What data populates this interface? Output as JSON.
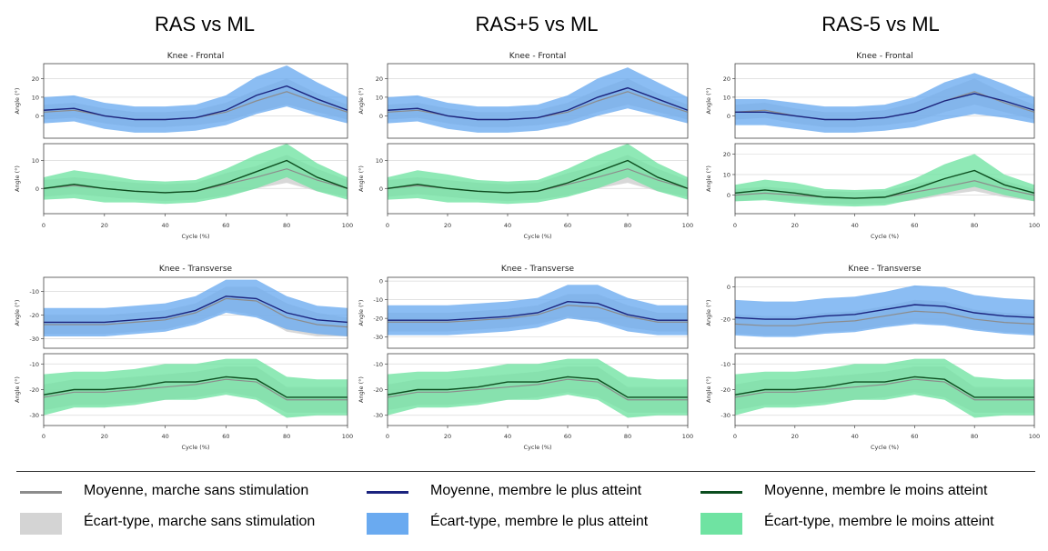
{
  "column_titles": [
    "RAS vs ML",
    "RAS+5 vs ML",
    "RAS-5 vs ML"
  ],
  "panel_titles": {
    "frontal": "Knee - Frontal",
    "transverse": "Knee - Transverse"
  },
  "axis_labels": {
    "y": "Angle (°)",
    "x": "Cycle (%)"
  },
  "colors": {
    "gray_line": "#8c8c8c",
    "gray_band": "#d4d4d4",
    "blue_line": "#1a237e",
    "blue_band": "#6aaaf0",
    "green_line": "#0b4d1e",
    "green_band": "#6fe3a2"
  },
  "legend": [
    {
      "label": "Moyenne, marche sans stimulation",
      "kind": "line",
      "color": "#8c8c8c"
    },
    {
      "label": "Moyenne, membre le plus atteint",
      "kind": "line",
      "color": "#1a237e"
    },
    {
      "label": "Moyenne, membre le moins atteint",
      "kind": "line",
      "color": "#0b4d1e"
    },
    {
      "label": "Écart-type, marche sans stimulation",
      "kind": "band",
      "color": "#d4d4d4"
    },
    {
      "label": "Écart-type, membre le plus atteint",
      "kind": "band",
      "color": "#6aaaf0"
    },
    {
      "label": "Écart-type, membre le moins atteint",
      "kind": "band",
      "color": "#6fe3a2"
    }
  ],
  "chart_data": [
    {
      "type": "line",
      "column": "RAS vs ML",
      "title": "Knee - Frontal",
      "subplots": [
        {
          "member": "plus",
          "ylabel": "Angle (°)",
          "xlabel": "",
          "ylim": [
            -12,
            28
          ],
          "yticks": [
            0,
            10,
            20
          ],
          "xlim": [
            0,
            100
          ],
          "x": [
            0,
            10,
            20,
            30,
            40,
            50,
            60,
            70,
            80,
            90,
            100
          ],
          "mean": [
            3,
            4,
            0,
            -2,
            -2,
            -1,
            3,
            11,
            16,
            9,
            3
          ],
          "sd": [
            7,
            7,
            7,
            7,
            7,
            7,
            8,
            10,
            11,
            9,
            7
          ],
          "ref_mean": [
            2,
            3,
            0,
            -2,
            -2,
            -1,
            2,
            8,
            13,
            7,
            2
          ],
          "ref_sd": [
            4,
            4,
            4,
            4,
            4,
            4,
            5,
            6,
            7,
            5,
            4
          ]
        },
        {
          "member": "moins",
          "ylabel": "Angle (°)",
          "xlabel": "Cycle (%)",
          "ylim": [
            -9,
            16
          ],
          "yticks": [
            0,
            10
          ],
          "xlim": [
            0,
            100
          ],
          "xticks": [
            0,
            20,
            40,
            60,
            80,
            100
          ],
          "x": [
            0,
            10,
            20,
            30,
            40,
            50,
            60,
            70,
            80,
            90,
            100
          ],
          "mean": [
            0,
            1.5,
            0,
            -1,
            -1.5,
            -1,
            2,
            6,
            10,
            4,
            0
          ],
          "sd": [
            4,
            5,
            5,
            4,
            4,
            4,
            5,
            6,
            6,
            5,
            4
          ],
          "ref_mean": [
            0,
            1,
            0,
            -1,
            -1.5,
            -1,
            1.5,
            4,
            7,
            3,
            0
          ],
          "ref_sd": [
            3,
            3,
            3,
            3,
            3,
            3,
            4,
            4,
            5,
            4,
            3
          ]
        }
      ]
    },
    {
      "type": "line",
      "column": "RAS+5 vs ML",
      "title": "Knee - Frontal",
      "subplots": [
        {
          "member": "plus",
          "ylabel": "Angle (°)",
          "xlabel": "",
          "ylim": [
            -12,
            28
          ],
          "yticks": [
            0,
            10,
            20
          ],
          "xlim": [
            0,
            100
          ],
          "x": [
            0,
            10,
            20,
            30,
            40,
            50,
            60,
            70,
            80,
            90,
            100
          ],
          "mean": [
            3,
            4,
            0,
            -2,
            -2,
            -1,
            3,
            10,
            15,
            9,
            3
          ],
          "sd": [
            7,
            7,
            7,
            7,
            7,
            7,
            8,
            10,
            11,
            9,
            7
          ],
          "ref_mean": [
            2,
            3,
            0,
            -2,
            -2,
            -1,
            2,
            8,
            13,
            7,
            2
          ],
          "ref_sd": [
            4,
            4,
            4,
            4,
            4,
            4,
            5,
            6,
            7,
            5,
            4
          ]
        },
        {
          "member": "moins",
          "ylabel": "Angle (°)",
          "xlabel": "Cycle (%)",
          "ylim": [
            -9,
            16
          ],
          "yticks": [
            0,
            10
          ],
          "xlim": [
            0,
            100
          ],
          "xticks": [
            0,
            20,
            40,
            60,
            80,
            100
          ],
          "x": [
            0,
            10,
            20,
            30,
            40,
            50,
            60,
            70,
            80,
            90,
            100
          ],
          "mean": [
            0,
            1.5,
            0,
            -1,
            -1.5,
            -1,
            2,
            6,
            10,
            4,
            0
          ],
          "sd": [
            4,
            5,
            5,
            4,
            4,
            4,
            5,
            6,
            6,
            5,
            4
          ],
          "ref_mean": [
            0,
            1,
            0,
            -1,
            -1.5,
            -1,
            1.5,
            4,
            7,
            3,
            0
          ],
          "ref_sd": [
            3,
            3,
            3,
            3,
            3,
            3,
            4,
            4,
            5,
            4,
            3
          ]
        }
      ]
    },
    {
      "type": "line",
      "column": "RAS-5 vs ML",
      "title": "Knee - Frontal",
      "subplots": [
        {
          "member": "plus",
          "ylabel": "Angle (°)",
          "xlabel": "",
          "ylim": [
            -12,
            28
          ],
          "yticks": [
            0,
            10,
            20
          ],
          "xlim": [
            0,
            100
          ],
          "x": [
            0,
            10,
            20,
            30,
            40,
            50,
            60,
            70,
            80,
            90,
            100
          ],
          "mean": [
            2,
            2,
            0,
            -2,
            -2,
            -1,
            2,
            8,
            12,
            8,
            3
          ],
          "sd": [
            7,
            7,
            7,
            7,
            7,
            7,
            8,
            10,
            11,
            9,
            7
          ],
          "ref_mean": [
            2,
            3,
            0,
            -2,
            -2,
            -1,
            2,
            8,
            13,
            7,
            2
          ],
          "ref_sd": [
            4,
            4,
            4,
            4,
            4,
            4,
            5,
            6,
            7,
            5,
            4
          ]
        },
        {
          "member": "moins",
          "ylabel": "Angle (°)",
          "xlabel": "Cycle (%)",
          "ylim": [
            -9,
            25
          ],
          "yticks": [
            0,
            10,
            20
          ],
          "xlim": [
            0,
            100
          ],
          "xticks": [
            0,
            20,
            40,
            60,
            80,
            100
          ],
          "x": [
            0,
            10,
            20,
            30,
            40,
            50,
            60,
            70,
            80,
            90,
            100
          ],
          "mean": [
            1,
            2.5,
            1,
            -1,
            -1.5,
            -1,
            3,
            8,
            12,
            5,
            1
          ],
          "sd": [
            4,
            5,
            5,
            4,
            4,
            4,
            5,
            7,
            8,
            5,
            4
          ],
          "ref_mean": [
            0,
            1,
            0,
            -1,
            -1.5,
            -1,
            1.5,
            4,
            7,
            3,
            0
          ],
          "ref_sd": [
            3,
            3,
            3,
            3,
            3,
            3,
            4,
            4,
            5,
            4,
            3
          ]
        }
      ]
    },
    {
      "type": "line",
      "column": "RAS vs ML",
      "title": "Knee - Transverse",
      "subplots": [
        {
          "member": "plus",
          "ylabel": "Angle (°)",
          "xlabel": "",
          "ylim": [
            -34,
            -4
          ],
          "yticks": [
            -30,
            -20,
            -10
          ],
          "xlim": [
            0,
            100
          ],
          "x": [
            0,
            10,
            20,
            30,
            40,
            50,
            60,
            70,
            80,
            90,
            100
          ],
          "mean": [
            -23,
            -23,
            -23,
            -22,
            -21,
            -18,
            -12,
            -13,
            -19,
            -22,
            -23
          ],
          "sd": [
            6,
            6,
            6,
            6,
            6,
            6,
            7,
            8,
            7,
            6,
            6
          ],
          "ref_mean": [
            -24,
            -24,
            -24,
            -23,
            -22,
            -19,
            -13,
            -14,
            -21,
            -24,
            -25
          ],
          "ref_sd": [
            4,
            4,
            4,
            4,
            4,
            4,
            5,
            6,
            6,
            5,
            4
          ]
        },
        {
          "member": "moins",
          "ylabel": "Angle (°)",
          "xlabel": "Cycle (%)",
          "ylim": [
            -34,
            -6
          ],
          "yticks": [
            -30,
            -20,
            -10
          ],
          "xlim": [
            0,
            100
          ],
          "xticks": [
            0,
            20,
            40,
            60,
            80,
            100
          ],
          "x": [
            0,
            10,
            20,
            30,
            40,
            50,
            60,
            70,
            80,
            90,
            100
          ],
          "mean": [
            -22,
            -20,
            -20,
            -19,
            -17,
            -17,
            -15,
            -16,
            -23,
            -23,
            -23
          ],
          "sd": [
            8,
            7,
            7,
            7,
            7,
            7,
            7,
            8,
            8,
            7,
            7
          ],
          "ref_mean": [
            -23,
            -21,
            -21,
            -20,
            -19,
            -18,
            -16,
            -17,
            -24,
            -24,
            -24
          ],
          "ref_sd": [
            5,
            5,
            5,
            5,
            5,
            5,
            5,
            6,
            5,
            5,
            5
          ]
        }
      ]
    },
    {
      "type": "line",
      "column": "RAS+5 vs ML",
      "title": "Knee - Transverse",
      "subplots": [
        {
          "member": "plus",
          "ylabel": "Angle (°)",
          "xlabel": "",
          "ylim": [
            -36,
            2
          ],
          "yticks": [
            -30,
            -20,
            -10,
            0
          ],
          "xlim": [
            0,
            100
          ],
          "x": [
            0,
            10,
            20,
            30,
            40,
            50,
            60,
            70,
            80,
            90,
            100
          ],
          "mean": [
            -21,
            -21,
            -21,
            -20,
            -19,
            -17,
            -11,
            -12,
            -18,
            -21,
            -21
          ],
          "sd": [
            8,
            8,
            8,
            8,
            8,
            8,
            9,
            10,
            9,
            8,
            8
          ],
          "ref_mean": [
            -22,
            -22,
            -22,
            -21,
            -20,
            -18,
            -13,
            -14,
            -19,
            -22,
            -22
          ],
          "ref_sd": [
            5,
            5,
            5,
            5,
            5,
            5,
            6,
            7,
            6,
            5,
            5
          ]
        },
        {
          "member": "moins",
          "ylabel": "Angle (°)",
          "xlabel": "Cycle (%)",
          "ylim": [
            -34,
            -6
          ],
          "yticks": [
            -30,
            -20,
            -10
          ],
          "xlim": [
            0,
            100
          ],
          "xticks": [
            0,
            20,
            40,
            60,
            80,
            100
          ],
          "x": [
            0,
            10,
            20,
            30,
            40,
            50,
            60,
            70,
            80,
            90,
            100
          ],
          "mean": [
            -22,
            -20,
            -20,
            -19,
            -17,
            -17,
            -15,
            -16,
            -23,
            -23,
            -23
          ],
          "sd": [
            8,
            7,
            7,
            7,
            7,
            7,
            7,
            8,
            8,
            7,
            7
          ],
          "ref_mean": [
            -23,
            -21,
            -21,
            -20,
            -19,
            -18,
            -16,
            -17,
            -24,
            -24,
            -24
          ],
          "ref_sd": [
            5,
            5,
            5,
            5,
            5,
            5,
            5,
            6,
            5,
            5,
            5
          ]
        }
      ]
    },
    {
      "type": "line",
      "column": "RAS-5 vs ML",
      "title": "Knee - Transverse",
      "subplots": [
        {
          "member": "plus",
          "ylabel": "Angle (°)",
          "xlabel": "",
          "ylim": [
            -38,
            6
          ],
          "yticks": [
            -20,
            0
          ],
          "xlim": [
            0,
            100
          ],
          "x": [
            0,
            10,
            20,
            30,
            40,
            50,
            60,
            70,
            80,
            90,
            100
          ],
          "mean": [
            -19,
            -20,
            -20,
            -18,
            -17,
            -14,
            -11,
            -12,
            -16,
            -18,
            -19
          ],
          "sd": [
            11,
            11,
            11,
            11,
            11,
            11,
            12,
            12,
            11,
            11,
            11
          ],
          "ref_mean": [
            -23,
            -24,
            -24,
            -22,
            -21,
            -18,
            -15,
            -16,
            -20,
            -22,
            -23
          ],
          "ref_sd": [
            6,
            6,
            6,
            6,
            6,
            6,
            7,
            7,
            6,
            6,
            6
          ]
        },
        {
          "member": "moins",
          "ylabel": "Angle (°)",
          "xlabel": "Cycle (%)",
          "ylim": [
            -34,
            -6
          ],
          "yticks": [
            -30,
            -20,
            -10
          ],
          "xlim": [
            0,
            100
          ],
          "xticks": [
            0,
            20,
            40,
            60,
            80,
            100
          ],
          "x": [
            0,
            10,
            20,
            30,
            40,
            50,
            60,
            70,
            80,
            90,
            100
          ],
          "mean": [
            -22,
            -20,
            -20,
            -19,
            -17,
            -17,
            -15,
            -16,
            -23,
            -23,
            -23
          ],
          "sd": [
            8,
            7,
            7,
            7,
            7,
            7,
            7,
            8,
            8,
            7,
            7
          ],
          "ref_mean": [
            -23,
            -21,
            -21,
            -20,
            -19,
            -18,
            -16,
            -17,
            -24,
            -24,
            -24
          ],
          "ref_sd": [
            5,
            5,
            5,
            5,
            5,
            5,
            5,
            6,
            5,
            5,
            5
          ]
        }
      ]
    }
  ]
}
